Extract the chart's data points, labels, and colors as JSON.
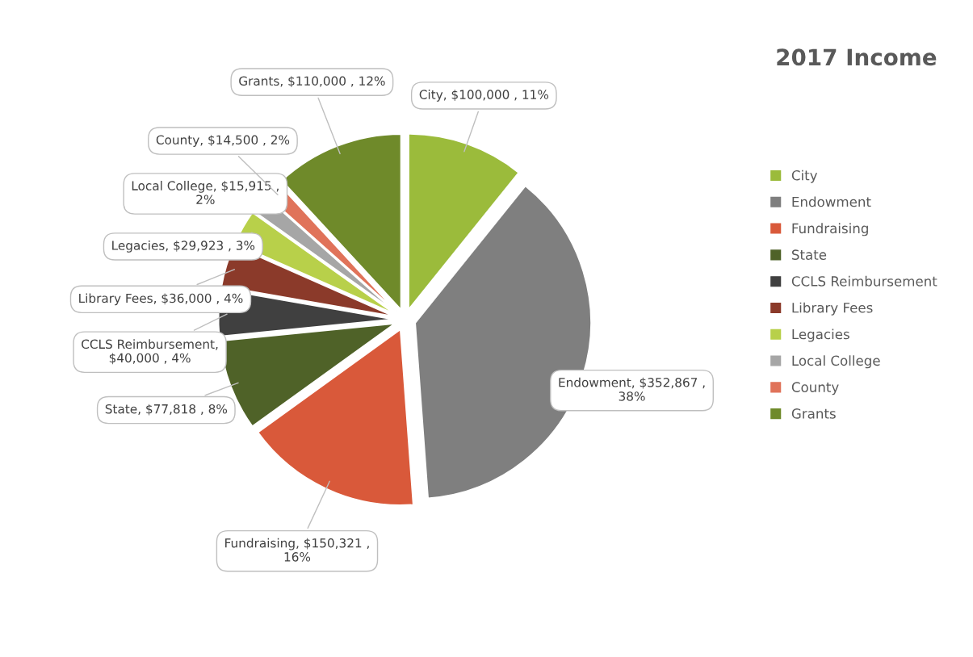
{
  "chart_data": {
    "type": "pie",
    "title": "2017 Income",
    "categories": [
      "City",
      "Endowment",
      "Fundraising",
      "State",
      "CCLS Reimbursement",
      "Library Fees",
      "Legacies",
      "Local College",
      "County",
      "Grants"
    ],
    "values": [
      100000,
      352867,
      150321,
      77818,
      40000,
      36000,
      29923,
      15915,
      14500,
      110000
    ],
    "value_labels": [
      "City, $100,000 , 11%",
      "Endowment, $352,867 , 38%",
      "Fundraising, $150,321 , 16%",
      "State, $77,818 , 8%",
      "CCLS Reimbursement, $40,000 , 4%",
      "Library Fees, $36,000 , 4%",
      "Legacies, $29,923 , 3%",
      "Local College, $15,915 , 2%",
      "County, $14,500 , 2%",
      "Grants, $110,000 , 12%"
    ],
    "colors": [
      "#9bbb3b",
      "#7f7f7f",
      "#d9593a",
      "#4f6228",
      "#404040",
      "#8b3a2a",
      "#b8d04a",
      "#a6a6a6",
      "#e0735a",
      "#6f8a2a"
    ],
    "legend": "right"
  }
}
